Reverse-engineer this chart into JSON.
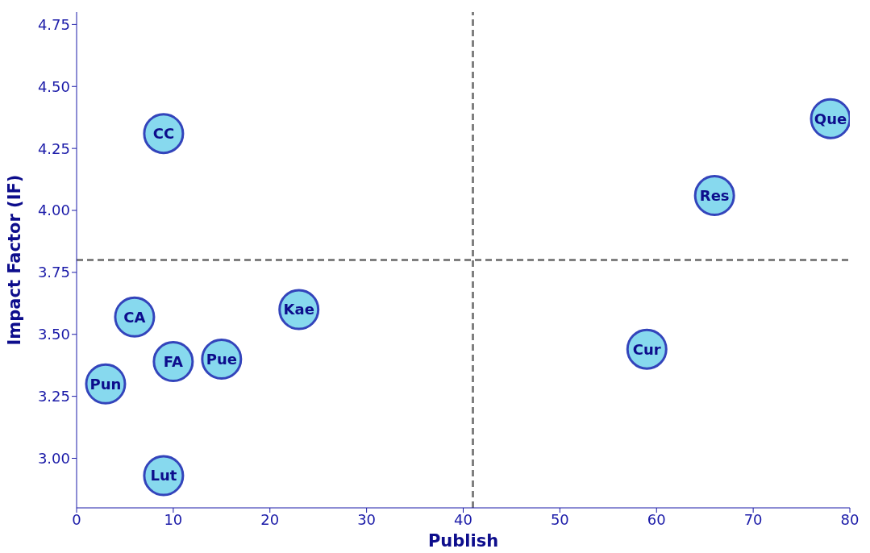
{
  "chart_data": {
    "type": "scatter",
    "xlabel": "Publish",
    "ylabel": "Impact Factor (IF)",
    "x": [
      9,
      78,
      66,
      6,
      23,
      15,
      10,
      3,
      9,
      59
    ],
    "series": [
      {
        "color": "#87d9ee",
        "values": [
          4.31,
          4.37,
          4.06,
          3.57,
          3.6,
          3.4,
          3.39,
          3.3,
          2.93,
          3.44
        ]
      }
    ],
    "marker": "circle",
    "grid": false,
    "legend": false,
    "xlim": [
      0,
      80
    ],
    "xticks": [
      0,
      10,
      20,
      30,
      40,
      50,
      60,
      70,
      80
    ],
    "ylim": [
      2.8,
      4.8
    ],
    "yticks": [
      {
        "value": 3.0,
        "label": "3.00"
      },
      {
        "value": 3.25,
        "label": "3.25"
      },
      {
        "value": 3.5,
        "label": "3.50"
      },
      {
        "value": 3.75,
        "label": "3.75"
      },
      {
        "value": 4.0,
        "label": "4.00"
      },
      {
        "value": 4.25,
        "label": "4.25"
      },
      {
        "value": 4.5,
        "label": "4.50"
      },
      {
        "value": 4.75,
        "label": "4.75"
      }
    ],
    "ref_lines": [
      {
        "axis": "x",
        "value": 41,
        "color": "#7f7f7f",
        "line_style": "dashed"
      },
      {
        "axis": "y",
        "value": 3.8,
        "color": "#7f7f7f",
        "line_style": "dashed"
      }
    ],
    "annotations": [
      {
        "text": "CC",
        "x": 9,
        "y": 4.31
      },
      {
        "text": "Que",
        "x": 78,
        "y": 4.37
      },
      {
        "text": "Res",
        "x": 66,
        "y": 4.06
      },
      {
        "text": "CA",
        "x": 6,
        "y": 3.57
      },
      {
        "text": "Kae",
        "x": 23,
        "y": 3.6
      },
      {
        "text": "Pue",
        "x": 15,
        "y": 3.4
      },
      {
        "text": "FA",
        "x": 10,
        "y": 3.39
      },
      {
        "text": "Pun",
        "x": 3,
        "y": 3.3
      },
      {
        "text": "Lut",
        "x": 9,
        "y": 2.93
      },
      {
        "text": "Cur",
        "x": 59,
        "y": 3.44
      }
    ]
  }
}
